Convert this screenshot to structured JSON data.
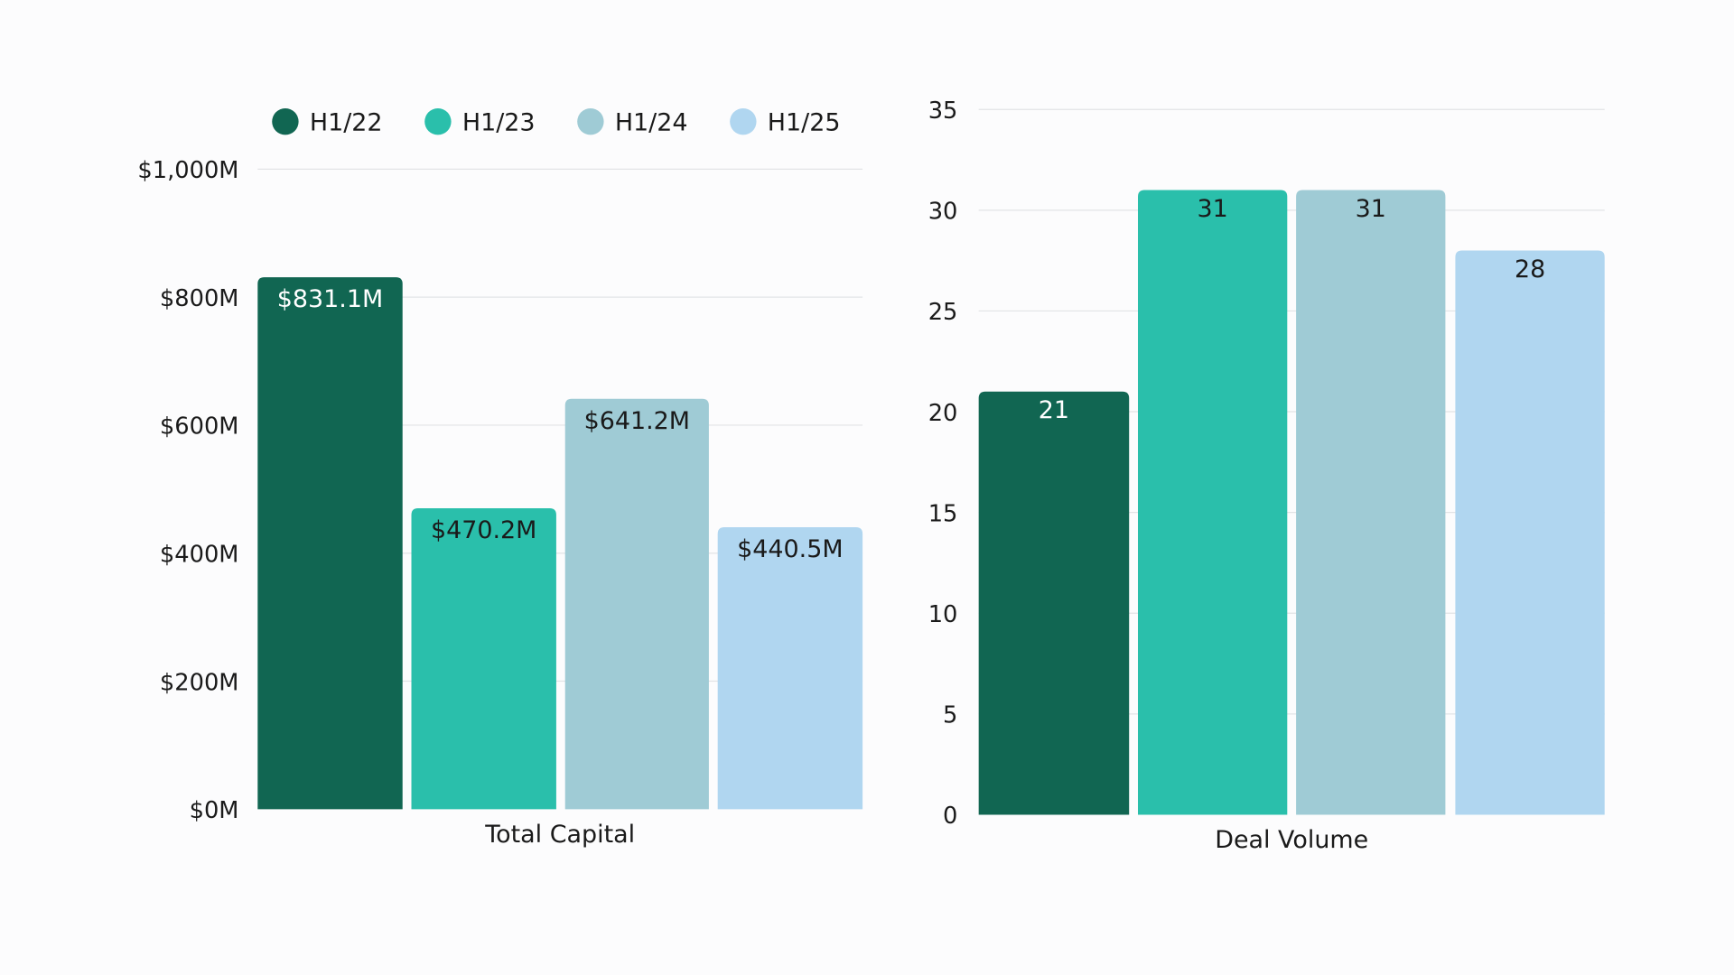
{
  "colors": {
    "H1/22": "#116652",
    "H1/23": "#2abfab",
    "H1/24": "#9fcbd5",
    "H1/25": "#b0d6f0",
    "background": "#fcfcfd",
    "grid": "#e2e4e6"
  },
  "legend": {
    "placement": "top",
    "items": [
      "H1/22",
      "H1/23",
      "H1/24",
      "H1/25"
    ]
  },
  "chart_data": [
    {
      "type": "bar",
      "xlabel": "Total Capital",
      "ylabel": "",
      "categories": [
        "Total Capital"
      ],
      "series": [
        {
          "name": "H1/22",
          "values": [
            831.1
          ],
          "label": "$831.1M"
        },
        {
          "name": "H1/23",
          "values": [
            470.2
          ],
          "label": "$470.2M"
        },
        {
          "name": "H1/24",
          "values": [
            641.2
          ],
          "label": "$641.2M"
        },
        {
          "name": "H1/25",
          "values": [
            440.5
          ],
          "label": "$440.5M"
        }
      ],
      "ylim": [
        0,
        1000
      ],
      "yticks": [
        0,
        200,
        400,
        600,
        800,
        1000
      ],
      "ytick_labels": [
        "$0M",
        "$200M",
        "$400M",
        "$600M",
        "$800M",
        "$1,000M"
      ],
      "grid": true
    },
    {
      "type": "bar",
      "xlabel": "Deal Volume",
      "ylabel": "",
      "categories": [
        "Deal Volume"
      ],
      "series": [
        {
          "name": "H1/22",
          "values": [
            21
          ],
          "label": "21"
        },
        {
          "name": "H1/23",
          "values": [
            31
          ],
          "label": "31"
        },
        {
          "name": "H1/24",
          "values": [
            31
          ],
          "label": "31"
        },
        {
          "name": "H1/25",
          "values": [
            28
          ],
          "label": "28"
        }
      ],
      "ylim": [
        0,
        35
      ],
      "yticks": [
        0,
        5,
        10,
        15,
        20,
        25,
        30,
        35
      ],
      "ytick_labels": [
        "0",
        "5",
        "10",
        "15",
        "20",
        "25",
        "30",
        "35"
      ],
      "grid": true
    }
  ]
}
